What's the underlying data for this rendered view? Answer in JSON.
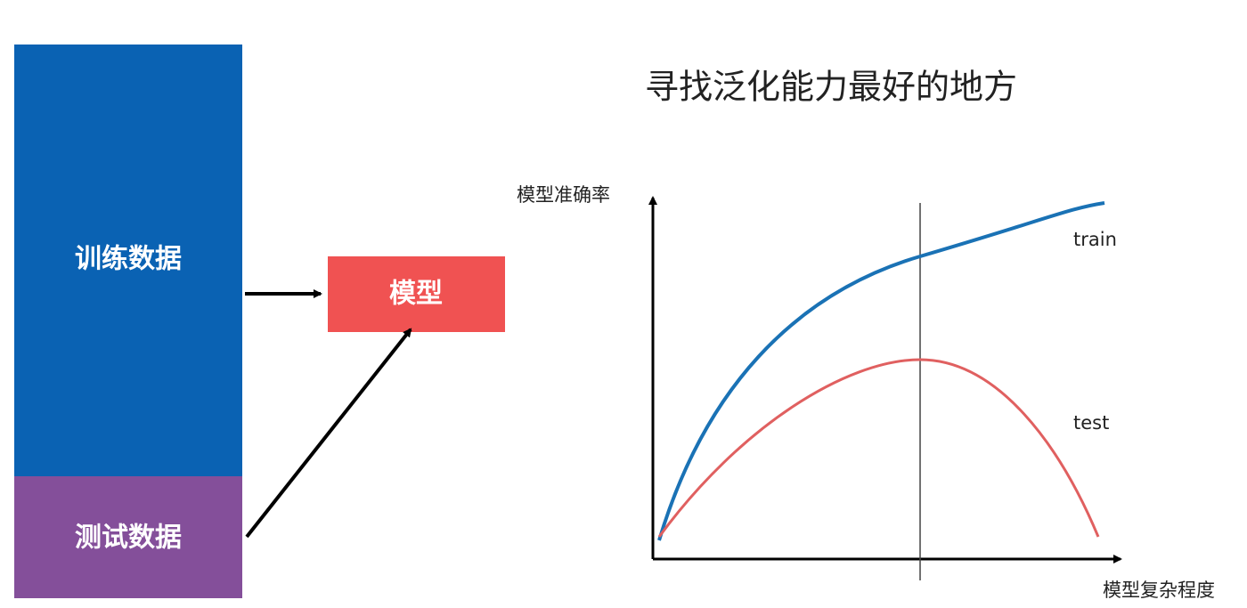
{
  "blocks": {
    "train_data": "训练数据",
    "test_data": "测试数据",
    "model": "模型"
  },
  "graph": {
    "title": "寻找泛化能力最好的地方",
    "y_axis_label": "模型准确率",
    "x_axis_label": "模型复杂程度",
    "train_label": "train",
    "test_label": "test"
  }
}
